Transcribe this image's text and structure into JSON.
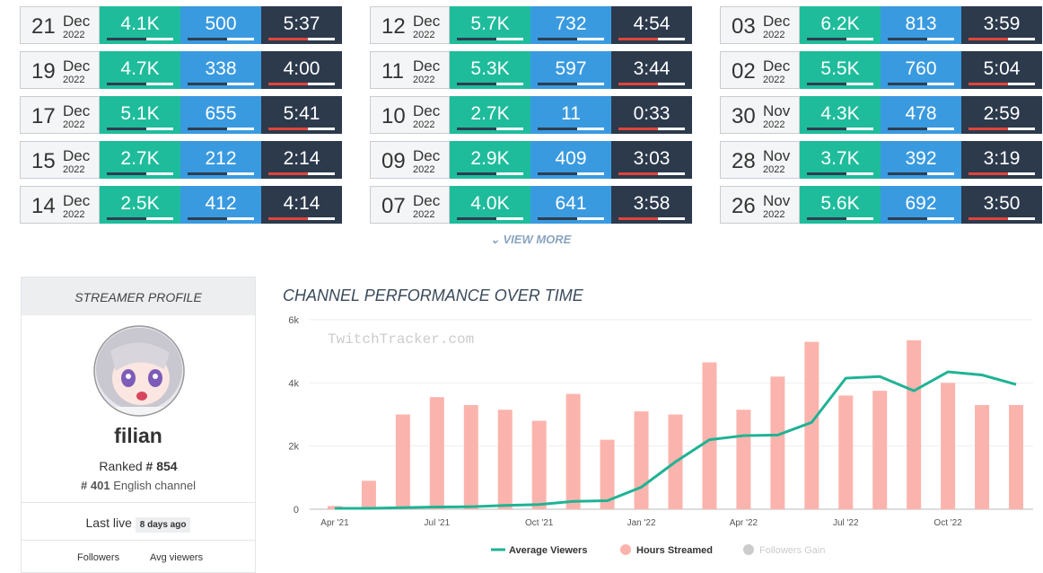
{
  "streams": [
    {
      "day": "21",
      "month": "Dec",
      "year": "2022",
      "viewers": "4.1K",
      "followers": "500",
      "duration": "5:37"
    },
    {
      "day": "19",
      "month": "Dec",
      "year": "2022",
      "viewers": "4.7K",
      "followers": "338",
      "duration": "4:00"
    },
    {
      "day": "17",
      "month": "Dec",
      "year": "2022",
      "viewers": "5.1K",
      "followers": "655",
      "duration": "5:41"
    },
    {
      "day": "15",
      "month": "Dec",
      "year": "2022",
      "viewers": "2.7K",
      "followers": "212",
      "duration": "2:14"
    },
    {
      "day": "14",
      "month": "Dec",
      "year": "2022",
      "viewers": "2.5K",
      "followers": "412",
      "duration": "4:14"
    },
    {
      "day": "12",
      "month": "Dec",
      "year": "2022",
      "viewers": "5.7K",
      "followers": "732",
      "duration": "4:54"
    },
    {
      "day": "11",
      "month": "Dec",
      "year": "2022",
      "viewers": "5.3K",
      "followers": "597",
      "duration": "3:44"
    },
    {
      "day": "10",
      "month": "Dec",
      "year": "2022",
      "viewers": "2.7K",
      "followers": "11",
      "duration": "0:33"
    },
    {
      "day": "09",
      "month": "Dec",
      "year": "2022",
      "viewers": "2.9K",
      "followers": "409",
      "duration": "3:03"
    },
    {
      "day": "07",
      "month": "Dec",
      "year": "2022",
      "viewers": "4.0K",
      "followers": "641",
      "duration": "3:58"
    },
    {
      "day": "03",
      "month": "Dec",
      "year": "2022",
      "viewers": "6.2K",
      "followers": "813",
      "duration": "3:59"
    },
    {
      "day": "02",
      "month": "Dec",
      "year": "2022",
      "viewers": "5.5K",
      "followers": "760",
      "duration": "5:04"
    },
    {
      "day": "30",
      "month": "Nov",
      "year": "2022",
      "viewers": "4.3K",
      "followers": "478",
      "duration": "2:59"
    },
    {
      "day": "28",
      "month": "Nov",
      "year": "2022",
      "viewers": "3.7K",
      "followers": "392",
      "duration": "3:19"
    },
    {
      "day": "26",
      "month": "Nov",
      "year": "2022",
      "viewers": "5.6K",
      "followers": "692",
      "duration": "3:50"
    }
  ],
  "view_more": "VIEW MORE",
  "profile": {
    "header": "STREAMER PROFILE",
    "name": "filian",
    "ranked_label": "Ranked",
    "rank": "# 854",
    "language_rank": "# 401",
    "language_label": "English channel",
    "last_live_label": "Last live",
    "last_live": "8 days ago",
    "stats": [
      "Followers",
      "Avg viewers"
    ]
  },
  "chart_data": {
    "type": "bar-line",
    "title": "CHANNEL PERFORMANCE OVER TIME",
    "watermark": "TwitchTracker.com",
    "categories": [
      "Apr '21",
      null,
      null,
      "Jul '21",
      null,
      null,
      "Oct '21",
      null,
      null,
      "Jan '22",
      null,
      null,
      "Apr '22",
      null,
      null,
      "Jul '22",
      null,
      null,
      "Oct '22",
      null,
      null
    ],
    "series": [
      {
        "name": "Average Viewers",
        "color": "#1fb394",
        "kind": "line",
        "values": [
          30,
          30,
          50,
          70,
          80,
          120,
          150,
          250,
          270,
          700,
          1500,
          2200,
          2330,
          2350,
          2750,
          4150,
          4200,
          3750,
          4350,
          4250,
          3950
        ]
      },
      {
        "name": "Hours Streamed",
        "color": "#fbb4ad",
        "kind": "bar",
        "values": [
          100,
          900,
          3000,
          3550,
          3300,
          3150,
          2800,
          3650,
          2200,
          3100,
          3000,
          4650,
          3150,
          4200,
          5300,
          3600,
          3750,
          5350,
          4000,
          3300,
          3300
        ]
      },
      {
        "name": "Followers Gain",
        "color": "#cccccc",
        "kind": "hidden"
      }
    ],
    "ylim": [
      0,
      6000
    ],
    "yticks": [
      0,
      {
        "value": 2000,
        "label": "2k"
      },
      {
        "value": 4000,
        "label": "4k"
      },
      {
        "value": 6000,
        "label": "6k"
      }
    ],
    "grid": true
  }
}
